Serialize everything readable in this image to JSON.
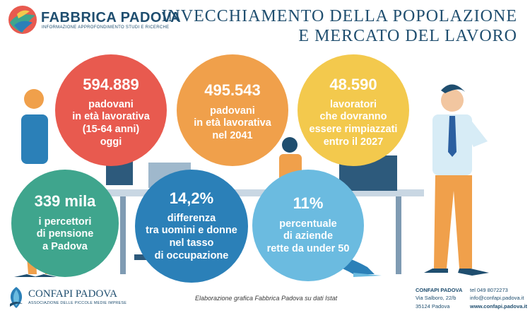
{
  "header": {
    "brand": "FABBRICA PADOVA",
    "brand_subtitle": "INFORMAZIONE APPROFONDIMENTO STUDI E RICERCHE",
    "title_line1": "INVECCHIAMENTO DELLA POPOLAZIONE",
    "title_line2": "E MERCATO DEL LAVORO"
  },
  "stats": [
    {
      "value": "594.889",
      "text": "padovani\nin età lavorativa\n(15-64 anni)\noggi",
      "color": "#e85a4f"
    },
    {
      "value": "495.543",
      "text": "padovani\nin età lavorativa\nnel 2041",
      "color": "#f0a04b"
    },
    {
      "value": "48.590",
      "text": "lavoratori\nche dovranno\nessere rimpiazzati\nentro il 2027",
      "color": "#f3c94d"
    },
    {
      "value": "339 mila",
      "text": "i percettori\ndi pensione\na Padova",
      "color": "#3fa58d"
    },
    {
      "value": "14,2%",
      "text": "differenza\ntra uomini e donne\nnel tasso\ndi occupazione",
      "color": "#2b80b8"
    },
    {
      "value": "11%",
      "text": "percentuale\ndi aziende\nrette da under 50",
      "color": "#6bbbe0"
    }
  ],
  "footer": {
    "org": "CONFAPI PADOVA",
    "org_subtitle": "ASSOCIAZIONE DELLE PICCOLE MEDIE IMPRESE",
    "credit": "Elaborazione grafica Fabbrica Padova su dati Istat",
    "address_title": "CONFAPI PADOVA",
    "address_line1": "Via Salboro, 22/b",
    "address_line2": "35124 Padova",
    "phone": "tel 049 8072273",
    "email": "info@confapi.padova.it",
    "website": "www.confapi.padova.it"
  }
}
